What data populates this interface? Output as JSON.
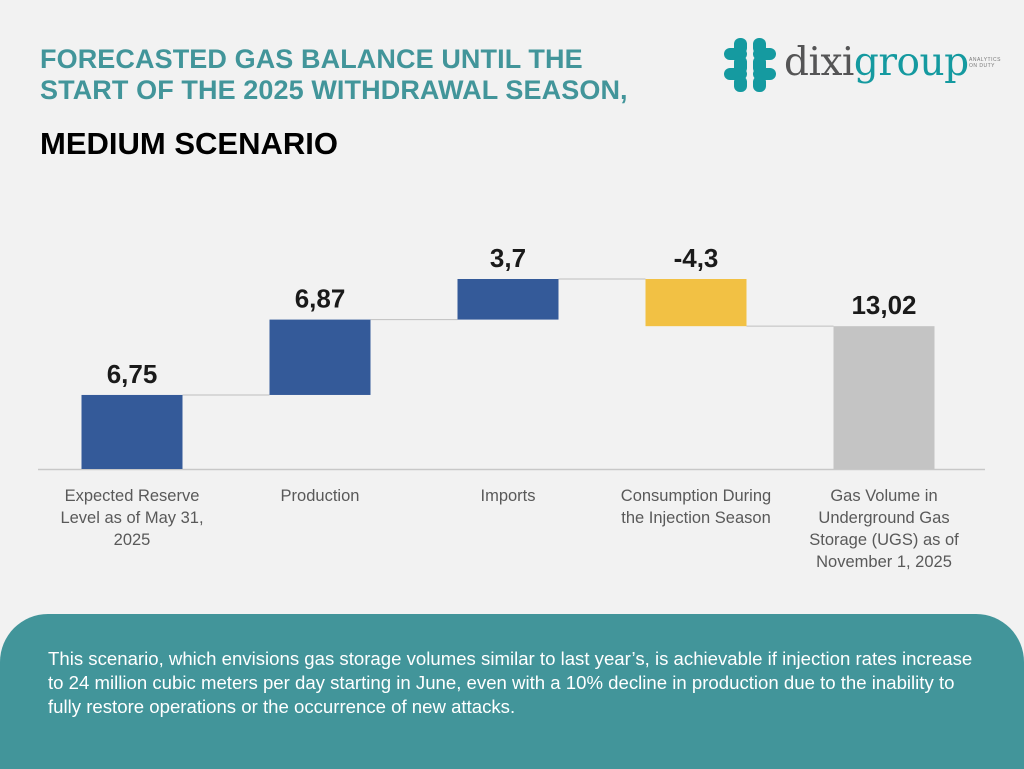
{
  "header": {
    "title_line1": "FORECASTED GAS BALANCE UNTIL THE",
    "title_line2": "START OF THE 2025 WITHDRAWAL SEASON,",
    "subtitle": "MEDIUM SCENARIO"
  },
  "logo": {
    "icon": "dixigroup-brain-icon",
    "name_part1": "dixi",
    "name_part2": "group",
    "tagline_line1": "ANALYTICS",
    "tagline_line2": "ON DUTY"
  },
  "colors": {
    "teal": "#42959a",
    "increase": "#345a99",
    "decrease": "#f2c144",
    "total": "#c4c4c4"
  },
  "chart_data": {
    "type": "bar",
    "subtype": "waterfall",
    "title": "FORECASTED GAS BALANCE UNTIL THE START OF THE 2025 WITHDRAWAL SEASON, MEDIUM SCENARIO",
    "xlabel": "",
    "ylabel": "",
    "grid": false,
    "legend": "none",
    "ylim": [
      0,
      17
    ],
    "categories": [
      "Expected Reserve Level as of May 31, 2025",
      "Production",
      "Imports",
      "Consumption During the Injection Season",
      "Gas Volume in Underground Gas Storage (UGS) as of November 1, 2025"
    ],
    "category_label_lines": [
      [
        "Expected Reserve",
        "Level as of May 31,",
        "2025"
      ],
      [
        "Production"
      ],
      [
        "Imports"
      ],
      [
        "Consumption During",
        "the Injection Season"
      ],
      [
        "Gas Volume in",
        "Underground Gas",
        "Storage (UGS) as of",
        "November 1, 2025"
      ]
    ],
    "values": [
      6.75,
      6.87,
      3.7,
      -4.3,
      13.02
    ],
    "data_labels": [
      "6,75",
      "6,87",
      "3,7",
      "-4,3",
      "13,02"
    ],
    "bar_kinds": [
      "total",
      "increase",
      "increase",
      "decrease",
      "total"
    ]
  },
  "footer": {
    "text": "This scenario, which envisions gas storage volumes similar to last year’s, is achievable if injection rates increase to 24 million cubic meters per day starting in June, even with a 10% decline in production due to the inability to fully restore operations or the occurrence of new attacks."
  }
}
